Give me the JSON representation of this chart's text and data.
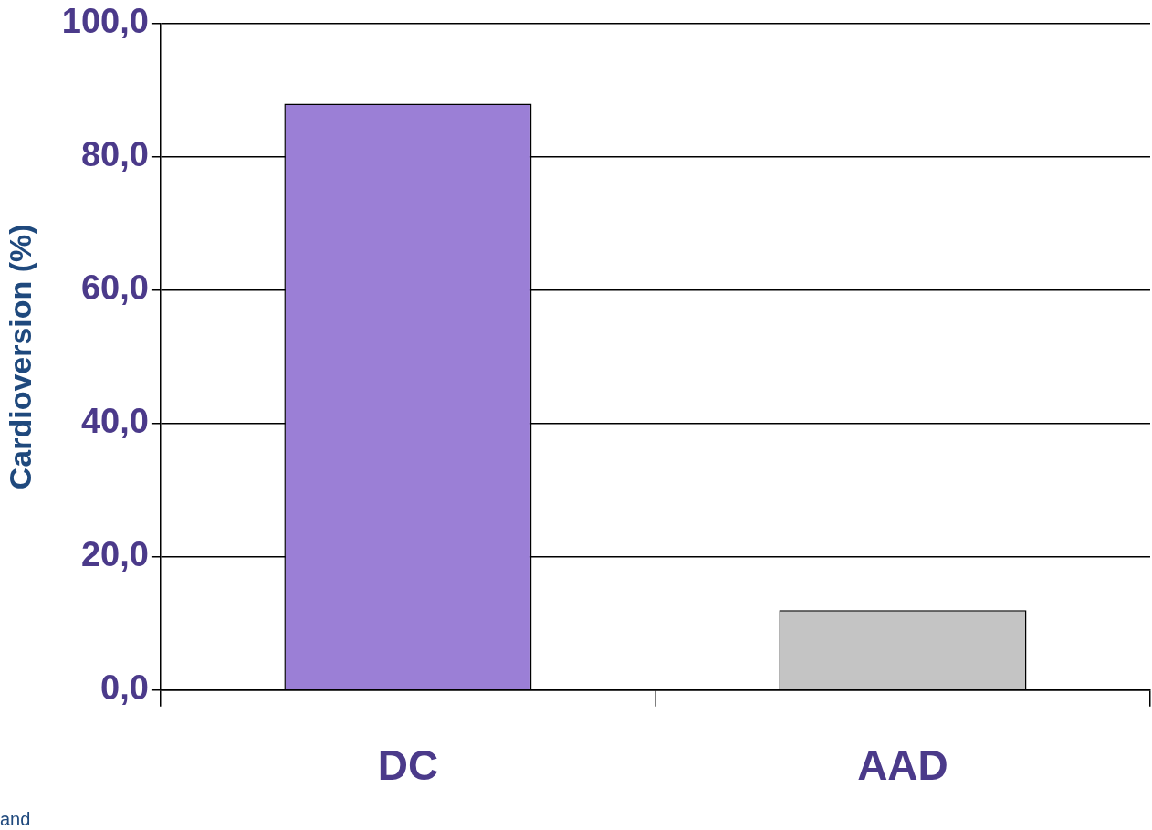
{
  "chart_data": {
    "type": "bar",
    "ylabel": "Cardioversion (%)",
    "categories": [
      "DC",
      "AAD"
    ],
    "values": [
      88,
      12
    ],
    "colors": [
      "#9b7fd6",
      "#c4c4c4"
    ],
    "ylim": [
      0,
      100
    ],
    "yticks": [
      {
        "value": 0,
        "label": "0,0"
      },
      {
        "value": 20,
        "label": "20,0"
      },
      {
        "value": 40,
        "label": "40,0"
      },
      {
        "value": 60,
        "label": "60,0"
      },
      {
        "value": 80,
        "label": "80,0"
      },
      {
        "value": 100,
        "label": "100,0"
      }
    ],
    "grid": "y",
    "annotations": [
      "and"
    ]
  }
}
